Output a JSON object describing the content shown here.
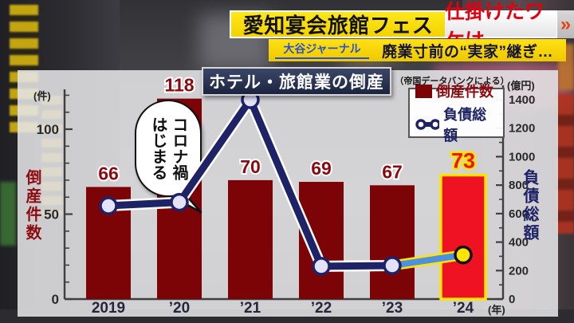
{
  "header": {
    "headline_primary": "愛知宴会旅館フェス",
    "headline_secondary": "仕掛けたワケは",
    "chevron": "»",
    "program_logo": "大谷ジャーナル",
    "subheadline": "廃業寸前の“実家”継ぎ…"
  },
  "chart": {
    "title": "ホテル・旅館業の倒産",
    "source": "（帝国データバンクによる）",
    "legend": {
      "bars_label": "倒産件数",
      "line_label": "負債総額"
    },
    "left_axis_unit": "(件)",
    "left_axis_label": "倒産件数",
    "right_axis_unit": "(億円)",
    "right_axis_label": "負債総額",
    "x_axis_unit": "(年)",
    "annotation": {
      "text": "コロナ禍\nはじまる"
    }
  },
  "chart_data": {
    "type": "bar",
    "title": "ホテル・旅館業の倒産",
    "source": "帝国データバンクによる",
    "categories": [
      "2019",
      "’20",
      "’21",
      "’22",
      "’23",
      "’24"
    ],
    "series": [
      {
        "name": "倒産件数",
        "type": "bar",
        "axis": "left",
        "unit": "件",
        "values": [
          66,
          118,
          70,
          69,
          67,
          73
        ],
        "color": "#7c0407",
        "highlight_index": 5,
        "highlight_color": "#ee1222",
        "highlight_border": "#ffe400"
      },
      {
        "name": "負債総額",
        "type": "line",
        "axis": "right",
        "unit": "億円",
        "values": [
          655,
          680,
          1400,
          230,
          235,
          310
        ],
        "color": "#1e2266",
        "marker_fill": "#e4e2f6",
        "highlight_segment_from": 4,
        "highlight_color": "#4d8fe0",
        "highlight_casing": "#ffe400",
        "final_marker_fill": "#ffe400"
      }
    ],
    "left_ylim": [
      0,
      120
    ],
    "left_ticks": [
      0,
      50,
      100
    ],
    "right_ylim": [
      0,
      1400
    ],
    "right_ticks": [
      0,
      200,
      400,
      600,
      800,
      1000,
      1200,
      1400
    ],
    "xlabel": "年",
    "ylabel_left": "倒産件数（件）",
    "ylabel_right": "負債総額（億円）",
    "legend_position": "top-right",
    "grid": false,
    "annotation": "コロナ禍はじまる（2020年の点を指す）"
  }
}
